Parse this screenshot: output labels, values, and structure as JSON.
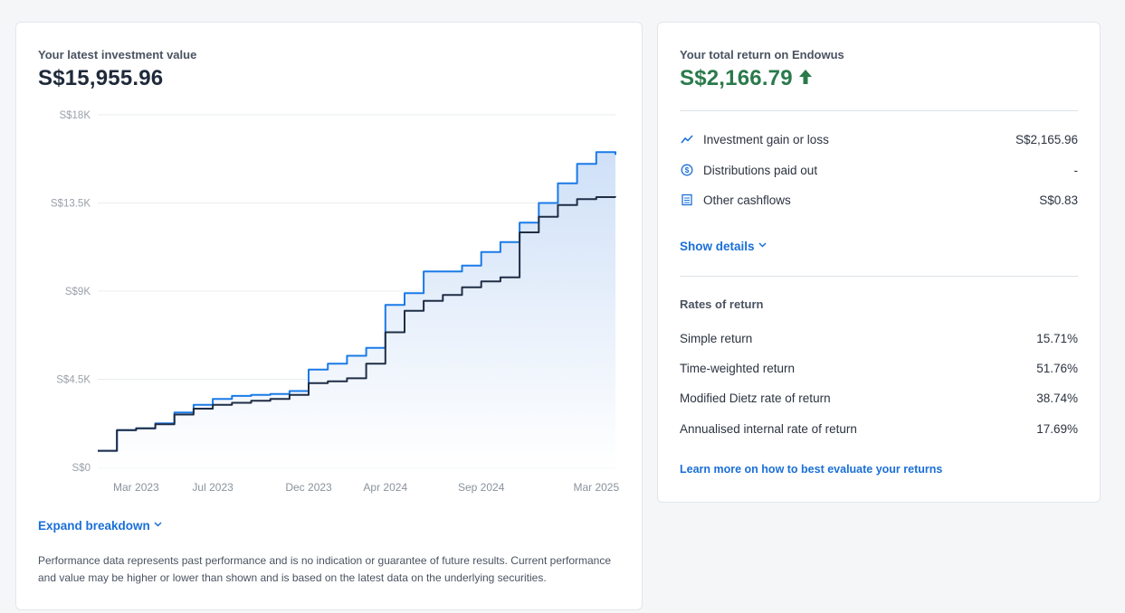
{
  "investment": {
    "title": "Your latest investment value",
    "value": "S$15,955.96",
    "expand_label": "Expand breakdown",
    "disclaimer": "Performance data represents past performance and is no indication or guarantee of future results. Current performance and value may be higher or lower than shown and is based on the latest data on the underlying securities."
  },
  "chart_data": {
    "type": "area",
    "y_ticks": [
      "S$18K",
      "S$13.5K",
      "S$9K",
      "S$4.5K",
      "S$0"
    ],
    "x_ticks": [
      "Mar 2023",
      "Jul 2023",
      "Dec 2023",
      "Apr 2024",
      "Sep 2024",
      "Mar 2025"
    ],
    "ylim": [
      0,
      18000
    ],
    "grid": true,
    "series": [
      {
        "color": "#1a7ae8",
        "points": [
          [
            "2023-01",
            850
          ],
          [
            "2023-02",
            1900
          ],
          [
            "2023-03",
            2000
          ],
          [
            "2023-04",
            2250
          ],
          [
            "2023-05",
            2800
          ],
          [
            "2023-06",
            3200
          ],
          [
            "2023-07",
            3500
          ],
          [
            "2023-08",
            3650
          ],
          [
            "2023-09",
            3700
          ],
          [
            "2023-10",
            3750
          ],
          [
            "2023-11",
            3900
          ],
          [
            "2023-12",
            5000
          ],
          [
            "2024-01",
            5300
          ],
          [
            "2024-02",
            5700
          ],
          [
            "2024-03",
            6100
          ],
          [
            "2024-04",
            8300
          ],
          [
            "2024-05",
            8900
          ],
          [
            "2024-06",
            10000
          ],
          [
            "2024-07",
            10000
          ],
          [
            "2024-08",
            10300
          ],
          [
            "2024-09",
            11000
          ],
          [
            "2024-10",
            11500
          ],
          [
            "2024-11",
            12500
          ],
          [
            "2024-12",
            13500
          ],
          [
            "2025-01",
            14500
          ],
          [
            "2025-02",
            15500
          ],
          [
            "2025-03",
            16100
          ],
          [
            "2025-04",
            15956
          ]
        ]
      },
      {
        "color": "#1f2d45",
        "points": [
          [
            "2023-01",
            850
          ],
          [
            "2023-02",
            1900
          ],
          [
            "2023-03",
            2000
          ],
          [
            "2023-04",
            2200
          ],
          [
            "2023-05",
            2700
          ],
          [
            "2023-06",
            3000
          ],
          [
            "2023-07",
            3200
          ],
          [
            "2023-08",
            3300
          ],
          [
            "2023-09",
            3400
          ],
          [
            "2023-10",
            3500
          ],
          [
            "2023-11",
            3700
          ],
          [
            "2023-12",
            4300
          ],
          [
            "2024-01",
            4400
          ],
          [
            "2024-02",
            4550
          ],
          [
            "2024-03",
            5300
          ],
          [
            "2024-04",
            6900
          ],
          [
            "2024-05",
            8000
          ],
          [
            "2024-06",
            8500
          ],
          [
            "2024-07",
            8800
          ],
          [
            "2024-08",
            9200
          ],
          [
            "2024-09",
            9500
          ],
          [
            "2024-10",
            9700
          ],
          [
            "2024-11",
            12000
          ],
          [
            "2024-12",
            12800
          ],
          [
            "2025-01",
            13400
          ],
          [
            "2025-02",
            13700
          ],
          [
            "2025-03",
            13800
          ],
          [
            "2025-04",
            13790
          ]
        ]
      }
    ]
  },
  "returns": {
    "title": "Your total return on Endowus",
    "value": "S$2,166.79",
    "trend_icon": "arrow-up-icon",
    "accent_color": "#2a7a4b",
    "items": [
      {
        "icon": "trend-line-icon",
        "label": "Investment gain or loss",
        "value": "S$2,165.96"
      },
      {
        "icon": "dollar-circle-icon",
        "label": "Distributions paid out",
        "value": "-"
      },
      {
        "icon": "document-icon",
        "label": "Other cashflows",
        "value": "S$0.83"
      }
    ],
    "show_details_label": "Show details",
    "rates_title": "Rates of return",
    "rates": [
      {
        "label": "Simple return",
        "value": "15.71%"
      },
      {
        "label": "Time-weighted return",
        "value": "51.76%"
      },
      {
        "label": "Modified Dietz rate of return",
        "value": "38.74%"
      },
      {
        "label": "Annualised internal rate of return",
        "value": "17.69%"
      }
    ],
    "learn_more_label": "Learn more on how to best evaluate your returns"
  }
}
